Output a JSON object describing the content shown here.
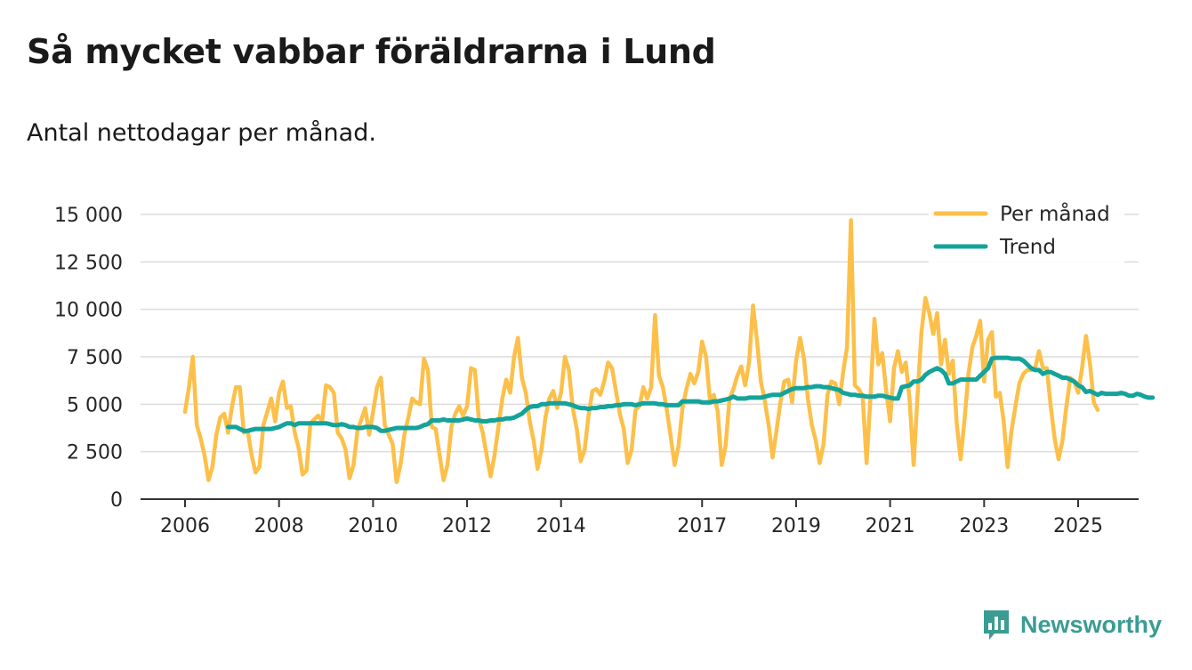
{
  "title": "Så mycket vabbar föräldrarna i Lund",
  "subtitle": "Antal nettodagar per månad.",
  "brand": {
    "name": "Newsworthy",
    "icon": "bar-chart-speech-bubble-icon",
    "color": "#3a9c93"
  },
  "colors": {
    "monthly": "#fcc04a",
    "trend": "#14a39a",
    "grid": "#dcdcdc",
    "axis": "#333333"
  },
  "chart_data": {
    "type": "line",
    "x_start": 2006.0,
    "x_step": 0.0833333,
    "xlim": [
      2006,
      2025.5
    ],
    "ylim": [
      0,
      15000
    ],
    "y_ticks": [
      0,
      2500,
      5000,
      7500,
      10000,
      12500,
      15000
    ],
    "y_tick_labels": [
      "0",
      "2 500",
      "5 000",
      "7 500",
      "10 000",
      "12 500",
      "15 000"
    ],
    "x_ticks": [
      2006,
      2008,
      2010,
      2012,
      2014,
      2017,
      2019,
      2021,
      2023,
      2025
    ],
    "x_tick_labels": [
      "2006",
      "2008",
      "2010",
      "2012",
      "2014",
      "2017",
      "2019",
      "2021",
      "2023",
      "2025"
    ],
    "legend": {
      "position": "top-right",
      "entries": [
        "Per månad",
        "Trend"
      ]
    },
    "series": [
      {
        "name": "Per månad",
        "values": [
          4600,
          5900,
          7500,
          3900,
          3200,
          2300,
          1000,
          1700,
          3400,
          4300,
          4500,
          3500,
          4900,
          5900,
          5900,
          3500,
          3600,
          2300,
          1400,
          1700,
          3900,
          4600,
          5300,
          4100,
          5600,
          6200,
          4800,
          4900,
          3500,
          2700,
          1300,
          1500,
          4000,
          4200,
          4400,
          4100,
          6000,
          5900,
          5600,
          3500,
          3200,
          2600,
          1100,
          1800,
          3600,
          4200,
          4800,
          3400,
          4600,
          5900,
          6400,
          3900,
          3400,
          2900,
          900,
          1800,
          3400,
          4300,
          5300,
          5100,
          5000,
          7400,
          6800,
          3800,
          3700,
          2300,
          1000,
          1800,
          3800,
          4500,
          4900,
          4400,
          4900,
          6900,
          6800,
          4200,
          3500,
          2300,
          1200,
          2300,
          3800,
          5300,
          6300,
          5600,
          7500,
          8500,
          6400,
          5600,
          4100,
          3100,
          1600,
          2600,
          4300,
          5300,
          5700,
          4800,
          5600,
          7500,
          6800,
          4800,
          3700,
          2000,
          2600,
          4400,
          5700,
          5800,
          5500,
          6200,
          7200,
          6900,
          5700,
          4500,
          3700,
          1900,
          2600,
          4700,
          4900,
          5900,
          5300,
          5900,
          9700,
          6500,
          5900,
          4700,
          3300,
          1800,
          2800,
          4800,
          5800,
          6600,
          6100,
          6700,
          8300,
          7500,
          5200,
          5500,
          4600,
          1800,
          2800,
          5300,
          5800,
          6500,
          7000,
          6000,
          7200,
          10200,
          8400,
          6200,
          5200,
          3900,
          2200,
          3600,
          5100,
          6200,
          6300,
          5100,
          7300,
          8500,
          7400,
          5300,
          3900,
          3100,
          1900,
          2900,
          5500,
          6200,
          6100,
          5000,
          6700,
          8000,
          14700,
          6000,
          5800,
          5400,
          1900,
          5400,
          9500,
          7100,
          7700,
          5700,
          4100,
          6900,
          7800,
          6700,
          7200,
          5200,
          1800,
          5500,
          8800,
          10600,
          9800,
          8700,
          9800,
          7100,
          8400,
          6600,
          7300,
          4000,
          2100,
          4200,
          6600,
          8000,
          8600,
          9400,
          6200,
          8400,
          8800,
          5400,
          5600,
          4100,
          1700,
          3600,
          4900,
          6100,
          6600,
          6800,
          6800,
          6900,
          7800,
          6900,
          6900,
          4900,
          3200,
          2100,
          3100,
          4900,
          6400,
          6200,
          5600,
          6900,
          8600,
          7200,
          5100,
          4700
        ]
      },
      {
        "name": "Trend",
        "x_start": 2006.9167,
        "values": [
          3800,
          3800,
          3800,
          3700,
          3600,
          3600,
          3650,
          3700,
          3700,
          3700,
          3700,
          3700,
          3750,
          3800,
          3900,
          4000,
          4000,
          3900,
          4000,
          4000,
          4000,
          4000,
          4000,
          4000,
          4000,
          4000,
          3950,
          3900,
          3900,
          3950,
          3900,
          3800,
          3800,
          3750,
          3750,
          3800,
          3800,
          3800,
          3750,
          3600,
          3600,
          3650,
          3700,
          3750,
          3750,
          3750,
          3750,
          3750,
          3750,
          3800,
          3900,
          3950,
          4150,
          4150,
          4150,
          4200,
          4150,
          4150,
          4150,
          4150,
          4200,
          4250,
          4200,
          4150,
          4150,
          4100,
          4100,
          4150,
          4150,
          4200,
          4200,
          4250,
          4250,
          4300,
          4400,
          4500,
          4700,
          4850,
          4900,
          4900,
          5000,
          5000,
          5050,
          5050,
          5050,
          5050,
          5050,
          5000,
          4950,
          4850,
          4800,
          4800,
          4750,
          4800,
          4800,
          4850,
          4850,
          4900,
          4900,
          4950,
          4950,
          5000,
          5000,
          5000,
          4950,
          5000,
          5050,
          5050,
          5050,
          5050,
          5000,
          5000,
          4950,
          4950,
          4950,
          4950,
          5150,
          5150,
          5150,
          5150,
          5150,
          5100,
          5100,
          5100,
          5150,
          5150,
          5200,
          5250,
          5300,
          5400,
          5300,
          5300,
          5300,
          5350,
          5350,
          5350,
          5350,
          5400,
          5450,
          5500,
          5500,
          5500,
          5600,
          5700,
          5800,
          5850,
          5850,
          5850,
          5900,
          5900,
          5950,
          5950,
          5900,
          5900,
          5850,
          5800,
          5750,
          5600,
          5550,
          5500,
          5500,
          5450,
          5450,
          5400,
          5400,
          5400,
          5450,
          5450,
          5400,
          5350,
          5300,
          5300,
          5900,
          5950,
          6000,
          6200,
          6200,
          6300,
          6550,
          6700,
          6800,
          6900,
          6800,
          6600,
          6100,
          6100,
          6200,
          6300,
          6300,
          6300,
          6300,
          6300,
          6500,
          6700,
          6900,
          7400,
          7450,
          7450,
          7450,
          7450,
          7400,
          7400,
          7400,
          7300,
          7100,
          6900,
          6800,
          6800,
          6600,
          6700,
          6700,
          6600,
          6500,
          6400,
          6400,
          6300,
          6200,
          6000,
          5900,
          5650,
          5700,
          5600,
          5500,
          5600,
          5550,
          5550,
          5550,
          5550,
          5600,
          5550,
          5450,
          5450,
          5550,
          5500,
          5400,
          5350,
          5350
        ]
      }
    ]
  }
}
